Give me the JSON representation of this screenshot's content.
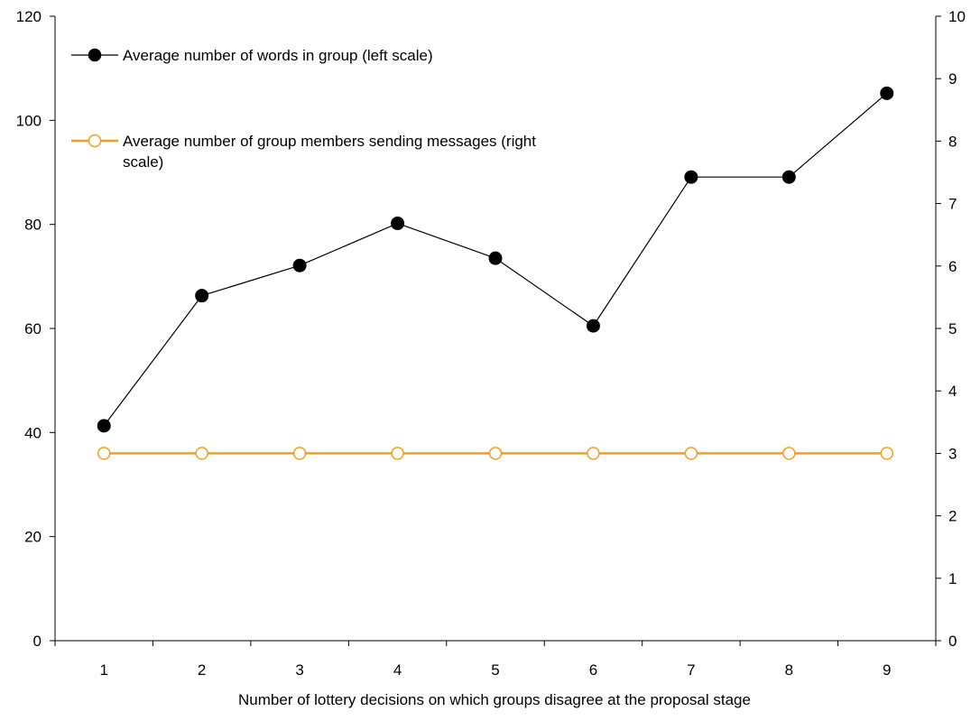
{
  "chart_data": {
    "type": "line",
    "title": "",
    "xlabel": "Number of lottery decisions on which groups disagree at the proposal stage",
    "ylabel_left": "",
    "ylabel_right": "",
    "categories": [
      "1",
      "2",
      "3",
      "4",
      "5",
      "6",
      "7",
      "8",
      "9"
    ],
    "ylim_left": [
      0,
      120
    ],
    "yticks_left": [
      "0",
      "20",
      "40",
      "60",
      "80",
      "100",
      "120"
    ],
    "ylim_right": [
      0,
      10
    ],
    "yticks_right": [
      "0",
      "1",
      "2",
      "3",
      "4",
      "5",
      "6",
      "7",
      "8",
      "9",
      "10"
    ],
    "grid": false,
    "legend_position": "top-left",
    "series": [
      {
        "name": "Average number of words in group (left scale)",
        "axis": "left",
        "color": "#000000",
        "marker": "filled-circle",
        "values": [
          41.3,
          66.3,
          72.1,
          80.2,
          73.5,
          60.5,
          89.1,
          89.1,
          105.2
        ]
      },
      {
        "name": "Average number of group members sending messages (right scale)",
        "legend_lines": [
          "Average number of group members sending messages (right",
          "scale)"
        ],
        "axis": "right",
        "color": "#F0A020",
        "marker": "open-circle",
        "values": [
          3,
          3,
          3,
          3,
          3,
          3,
          3,
          3,
          3
        ]
      }
    ]
  }
}
